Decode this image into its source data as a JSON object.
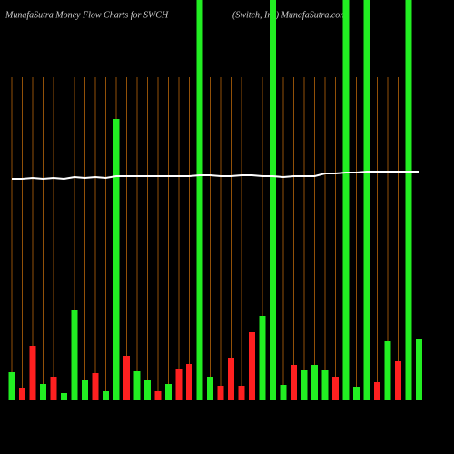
{
  "chart_data": {
    "type": "bar",
    "title": "MunafaSutra  Money Flow  Charts for SWCH",
    "subtitle": "(Switch,  Inc)  MunafaSutra.com",
    "categories": [
      null,
      null,
      null,
      null,
      null,
      null,
      null,
      null,
      null,
      null,
      null,
      null,
      null,
      null,
      null,
      null,
      null,
      null,
      null,
      null,
      null,
      null,
      null,
      null,
      null,
      null,
      null,
      null,
      null,
      null,
      null,
      null,
      null,
      null,
      null,
      null,
      null,
      null,
      null,
      null
    ],
    "values": [
      30,
      13,
      59,
      17,
      25,
      7,
      99,
      22,
      29,
      9,
      309,
      48,
      31,
      22,
      9,
      17,
      34,
      39,
      440,
      25,
      15,
      46,
      15,
      74,
      92,
      440,
      16,
      38,
      33,
      38,
      32,
      25,
      440,
      14,
      440,
      19,
      65,
      42,
      440,
      67
    ],
    "colors": [
      "#22ee22",
      "#ff2020",
      "#ff2020",
      "#22ee22",
      "#ff2020",
      "#22ee22",
      "#22ee22",
      "#22ee22",
      "#ff2020",
      "#22ee22",
      "#22ee22",
      "#ff2020",
      "#22ee22",
      "#22ee22",
      "#ff2020",
      "#22ee22",
      "#ff2020",
      "#ff2020",
      "#22ee22",
      "#22ee22",
      "#ff2020",
      "#ff2020",
      "#ff2020",
      "#ff2020",
      "#22ee22",
      "#22ee22",
      "#22ee22",
      "#ff2020",
      "#22ee22",
      "#22ee22",
      "#22ee22",
      "#ff2020",
      "#22ee22",
      "#22ee22",
      "#22ee22",
      "#ff2020",
      "#22ee22",
      "#ff2020",
      "#22ee22",
      "#22ee22"
    ],
    "line": {
      "color": "#ffffff",
      "values": [
        243,
        243,
        244,
        243,
        244,
        243,
        245,
        244,
        245,
        244,
        246,
        246,
        246,
        246,
        246,
        246,
        246,
        246,
        247,
        247,
        246,
        246,
        247,
        247,
        246,
        246,
        245,
        246,
        246,
        246,
        249,
        249,
        250,
        250,
        251,
        251,
        251,
        251,
        251,
        251
      ]
    },
    "ylim": [
      0,
      440
    ],
    "grid": true,
    "grid_color": "#b8660b"
  }
}
